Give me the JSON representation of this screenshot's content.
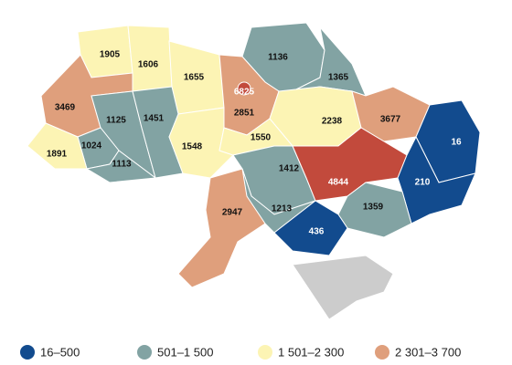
{
  "regions": [
    {
      "value": 1905,
      "color": "#fcf4b4"
    },
    {
      "value": 1606,
      "color": "#fcf4b4"
    },
    {
      "value": 1655,
      "color": "#fcf4b4"
    },
    {
      "value": 1136,
      "color": "#82a3a3"
    },
    {
      "value": 1365,
      "color": "#82a3a3"
    },
    {
      "value": 2851,
      "color": "#df9f7c"
    },
    {
      "value": 6825,
      "color": "#c24a3c"
    },
    {
      "value": 2238,
      "color": "#fcf4b4"
    },
    {
      "value": 3677,
      "color": "#df9f7c"
    },
    {
      "value": 16,
      "color": "#124b8e"
    },
    {
      "value": 3469,
      "color": "#df9f7c"
    },
    {
      "value": 1125,
      "color": "#82a3a3"
    },
    {
      "value": 1451,
      "color": "#82a3a3"
    },
    {
      "value": 1024,
      "color": "#82a3a3"
    },
    {
      "value": 1891,
      "color": "#fcf4b4"
    },
    {
      "value": 1113,
      "color": "#82a3a3"
    },
    {
      "value": 1548,
      "color": "#fcf4b4"
    },
    {
      "value": 1550,
      "color": "#fcf4b4"
    },
    {
      "value": 1412,
      "color": "#82a3a3"
    },
    {
      "value": 4844,
      "color": "#c24a3c"
    },
    {
      "value": 210,
      "color": "#124b8e"
    },
    {
      "value": 2947,
      "color": "#df9f7c"
    },
    {
      "value": 1213,
      "color": "#82a3a3"
    },
    {
      "value": 1359,
      "color": "#82a3a3"
    },
    {
      "value": 436,
      "color": "#124b8e"
    }
  ],
  "legend": [
    {
      "label": "16–500",
      "color": "#124b8e"
    },
    {
      "label": "501–1 500",
      "color": "#82a3a3"
    },
    {
      "label": "1 501–2 300",
      "color": "#fcf4b4"
    },
    {
      "label": "2 301–3 700",
      "color": "#df9f7c"
    }
  ]
}
